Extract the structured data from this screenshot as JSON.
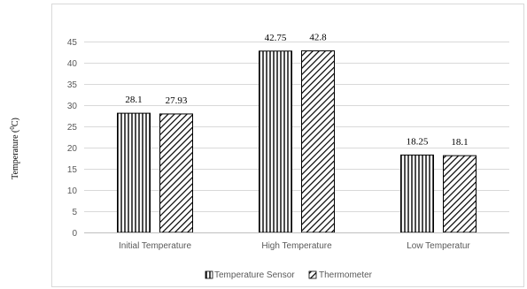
{
  "chart_data": {
    "type": "bar",
    "categories": [
      "Initial Temperature",
      "High Temperature",
      "Low Temperatur"
    ],
    "series": [
      {
        "name": "Temperature Sensor",
        "values": [
          28.1,
          42.75,
          18.25
        ],
        "pattern": "vertical-stripes",
        "color": "#000000"
      },
      {
        "name": "Thermometer",
        "values": [
          27.93,
          42.8,
          18.1
        ],
        "pattern": "diagonal-stripes",
        "color": "#000000"
      }
    ],
    "data_labels": [
      [
        "28.1",
        "42.75",
        "18.25"
      ],
      [
        "27.93",
        "42.8",
        "18.1"
      ]
    ],
    "yticks": [
      "0",
      "5",
      "10",
      "15",
      "20",
      "25",
      "30",
      "35",
      "40",
      "45"
    ],
    "ylim": [
      0,
      45
    ],
    "ylabel_main": "Temperature (",
    "ylabel_sup": "0",
    "ylabel_tail": "C)",
    "legend_position": "bottom",
    "grid": true,
    "grid_color": "#d9d9d9"
  }
}
